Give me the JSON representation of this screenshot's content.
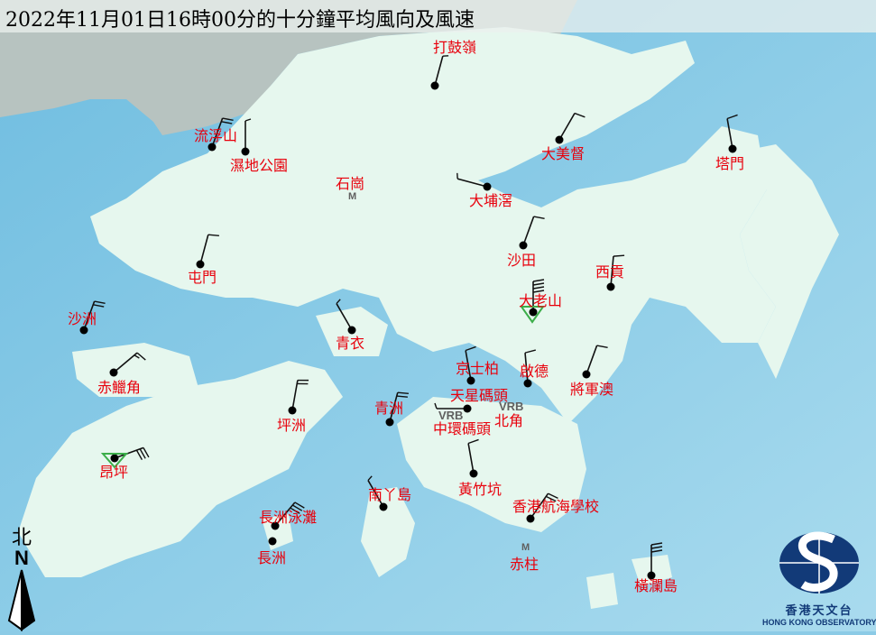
{
  "title": "2022年11月01日16時00分的十分鐘平均風向及風速",
  "colors": {
    "sea": "#8ccbe6",
    "land": "#e6f7ee",
    "label": "#e8000c",
    "barb": "#111111",
    "logo": "#123a78"
  },
  "north": {
    "cn": "北",
    "en": "N"
  },
  "logo": {
    "cn": "香港天文台",
    "en": "HONG KONG OBSERVATORY"
  },
  "vrb_label": "VRB",
  "m_marker": "M",
  "stations": [
    {
      "name": "打鼓嶺",
      "wind": {
        "direction_deg": 15,
        "feathers": 0.5
      }
    },
    {
      "name": "流浮山",
      "wind": {
        "direction_deg": 20,
        "feathers": 2
      }
    },
    {
      "name": "濕地公園",
      "wind": {
        "direction_deg": 0,
        "feathers": 0.5
      }
    },
    {
      "name": "石崗"
    },
    {
      "name": "大美督",
      "wind": {
        "direction_deg": 30,
        "feathers": 1
      }
    },
    {
      "name": "塔門",
      "wind": {
        "direction_deg": 350,
        "feathers": 1
      }
    },
    {
      "name": "大埔滘",
      "wind": {
        "direction_deg": 285,
        "feathers": 0.5
      }
    },
    {
      "name": "沙田",
      "wind": {
        "direction_deg": 20,
        "feathers": 1
      }
    },
    {
      "name": "屯門",
      "wind": {
        "direction_deg": 15,
        "feathers": 1
      }
    },
    {
      "name": "西貢",
      "wind": {
        "direction_deg": 5,
        "feathers": 1
      }
    },
    {
      "name": "大老山",
      "wind": {
        "direction_deg": 0,
        "feathers": 4
      }
    },
    {
      "name": "沙洲",
      "wind": {
        "direction_deg": 20,
        "feathers": 2
      }
    },
    {
      "name": "青衣",
      "wind": {
        "direction_deg": 330,
        "feathers": 0.5
      }
    },
    {
      "name": "赤鱲角",
      "wind": {
        "direction_deg": 50,
        "feathers": 1.5
      }
    },
    {
      "name": "京士柏",
      "wind": {
        "direction_deg": 350,
        "feathers": 1
      }
    },
    {
      "name": "啟德",
      "wind": {
        "direction_deg": 355,
        "feathers": 1
      }
    },
    {
      "name": "將軍澳",
      "wind": {
        "direction_deg": 20,
        "feathers": 1
      }
    },
    {
      "name": "坪洲",
      "wind": {
        "direction_deg": 10,
        "feathers": 2
      }
    },
    {
      "name": "青洲",
      "wind": {
        "direction_deg": 15,
        "feathers": 2
      }
    },
    {
      "name": "天星碼頭",
      "wind": {
        "direction_deg": 270,
        "feathers": 0.5
      }
    },
    {
      "name": "中環碼頭",
      "wind": {
        "variable": true
      }
    },
    {
      "name": "北角",
      "wind": {
        "variable": true
      }
    },
    {
      "name": "昂坪",
      "wind": {
        "direction_deg": 70,
        "feathers": 3
      }
    },
    {
      "name": "南丫島",
      "wind": {
        "direction_deg": 330,
        "feathers": 0.5
      }
    },
    {
      "name": "黃竹坑",
      "wind": {
        "direction_deg": 350,
        "feathers": 1
      }
    },
    {
      "name": "長洲泳灘",
      "wind": {
        "direction_deg": 40,
        "feathers": 3
      }
    },
    {
      "name": "長洲"
    },
    {
      "name": "香港航海學校",
      "wind": {
        "direction_deg": 35,
        "feathers": 2
      }
    },
    {
      "name": "赤柱"
    },
    {
      "name": "橫瀾島",
      "wind": {
        "direction_deg": 0,
        "feathers": 3
      }
    }
  ]
}
